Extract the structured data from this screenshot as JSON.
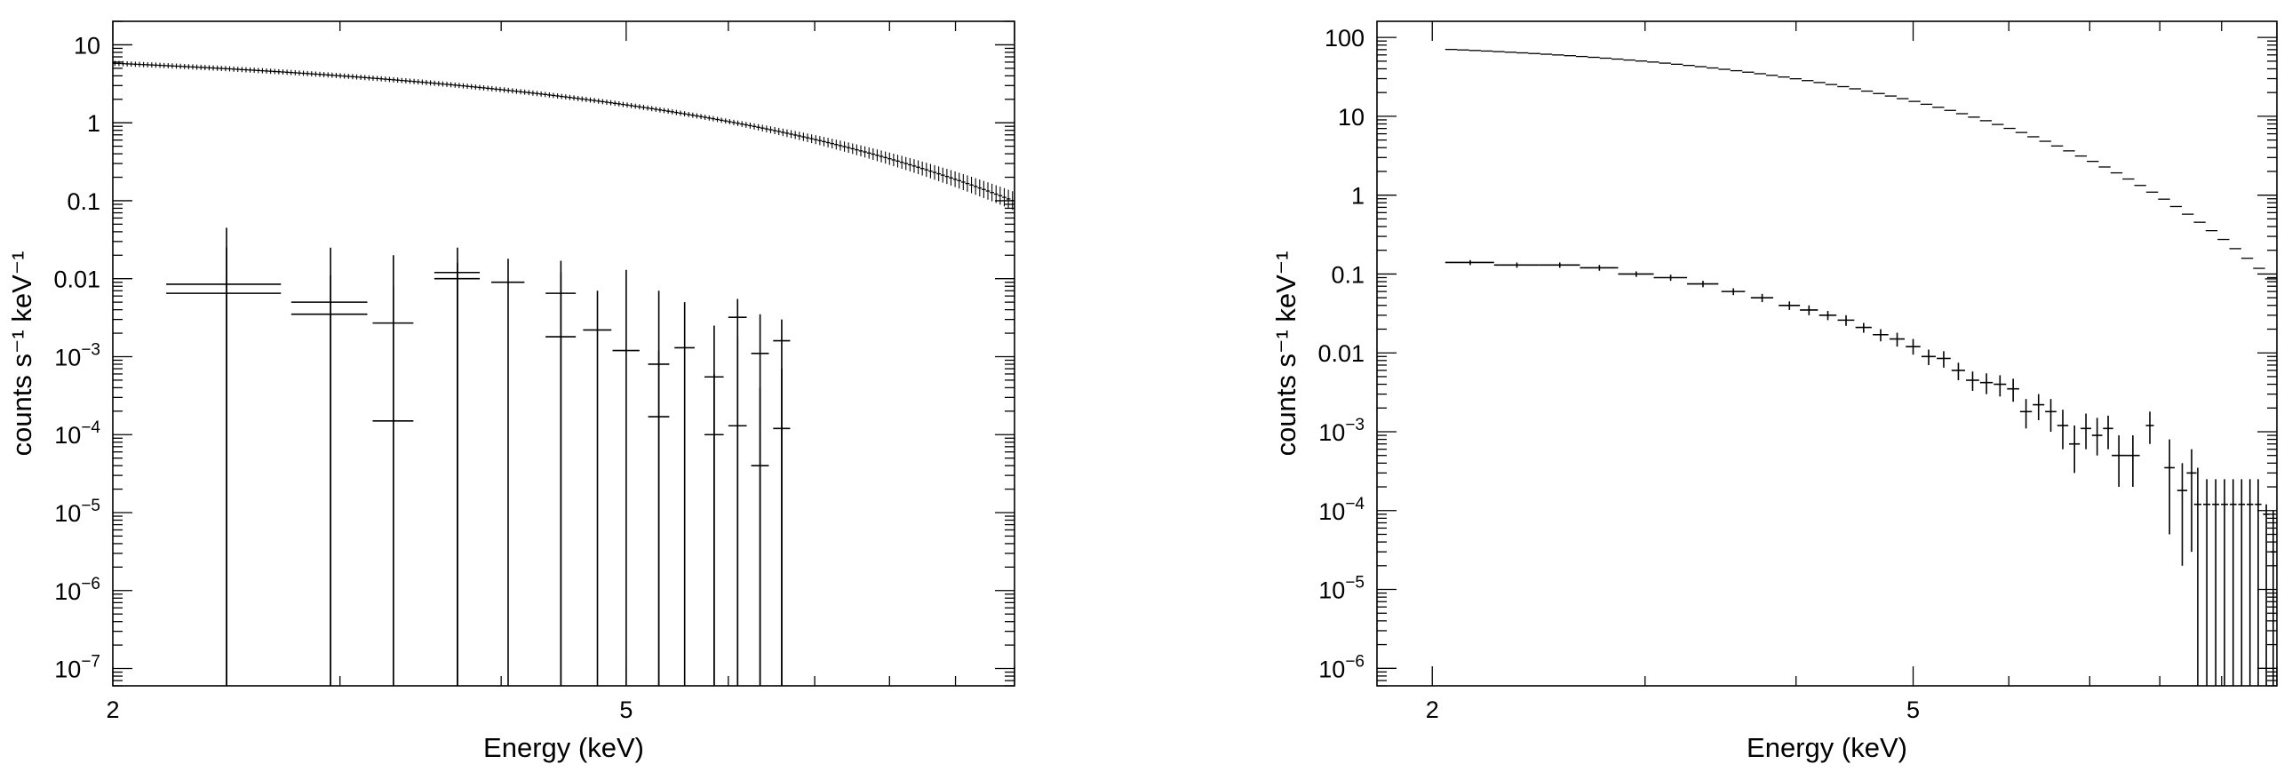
{
  "chart_data": [
    {
      "type": "scatter",
      "title": "",
      "xlabel": "Energy (keV)",
      "ylabel": "counts s⁻¹ keV⁻¹",
      "xscale": "log",
      "yscale": "log",
      "xlim": [
        2,
        10
      ],
      "ylim": [
        6e-08,
        20
      ],
      "grid": false,
      "x_ticks": [
        {
          "value": 2,
          "label": "2"
        },
        {
          "value": 5,
          "label": "5"
        }
      ],
      "y_ticks": [
        {
          "value": 10,
          "label": "10",
          "exp": ""
        },
        {
          "value": 1,
          "label": "1",
          "exp": ""
        },
        {
          "value": 0.1,
          "label": "0.1",
          "exp": ""
        },
        {
          "value": 0.01,
          "label": "0.01",
          "exp": ""
        },
        {
          "value": 0.001,
          "label": "10",
          "exp": "−3"
        },
        {
          "value": 0.0001,
          "label": "10",
          "exp": "−4"
        },
        {
          "value": 1e-05,
          "label": "10",
          "exp": "−5"
        },
        {
          "value": 1e-06,
          "label": "10",
          "exp": "−6"
        },
        {
          "value": 1e-07,
          "label": "10",
          "exp": "−7"
        }
      ],
      "series": [
        {
          "model": {
            "a": 5.8,
            "b": 0.35,
            "c": 0.02,
            "e0": 2,
            "xmin": 2.0,
            "xmax": 10.0,
            "nbins": 220,
            "err_rel": 0.08
          },
          "style": "spectrum"
        },
        {
          "style": "crosses",
          "points": [
            {
              "x": 2.45,
              "xe": 0.25,
              "y": 0.0085,
              "ylo": 1e-08,
              "yhi": 0.045
            },
            {
              "x": 2.45,
              "xe": 0.25,
              "y": 0.0065,
              "ylo": 1e-08,
              "yhi": 0.025
            },
            {
              "x": 2.95,
              "xe": 0.2,
              "y": 0.005,
              "ylo": 1e-08,
              "yhi": 0.025
            },
            {
              "x": 2.95,
              "xe": 0.2,
              "y": 0.0035,
              "ylo": 1e-08,
              "yhi": 0.011
            },
            {
              "x": 3.3,
              "xe": 0.12,
              "y": 0.0027,
              "ylo": 1e-08,
              "yhi": 0.02
            },
            {
              "x": 3.3,
              "xe": 0.12,
              "y": 0.00015,
              "ylo": 1e-08,
              "yhi": 0.008
            },
            {
              "x": 3.7,
              "xe": 0.15,
              "y": 0.012,
              "ylo": 1e-08,
              "yhi": 0.025
            },
            {
              "x": 3.7,
              "xe": 0.15,
              "y": 0.01,
              "ylo": 1e-08,
              "yhi": 0.016
            },
            {
              "x": 4.05,
              "xe": 0.12,
              "y": 0.009,
              "ylo": 1e-08,
              "yhi": 0.018
            },
            {
              "x": 4.45,
              "xe": 0.12,
              "y": 0.0065,
              "ylo": 1e-08,
              "yhi": 0.017
            },
            {
              "x": 4.45,
              "xe": 0.12,
              "y": 0.0018,
              "ylo": 1e-08,
              "yhi": 0.012
            },
            {
              "x": 4.75,
              "xe": 0.12,
              "y": 0.0022,
              "ylo": 1e-08,
              "yhi": 0.007
            },
            {
              "x": 5.0,
              "xe": 0.12,
              "y": 0.0012,
              "ylo": 1e-08,
              "yhi": 0.013
            },
            {
              "x": 5.3,
              "xe": 0.1,
              "y": 0.0008,
              "ylo": 1e-08,
              "yhi": 0.007
            },
            {
              "x": 5.3,
              "xe": 0.1,
              "y": 0.00017,
              "ylo": 1e-08,
              "yhi": 0.0012
            },
            {
              "x": 5.55,
              "xe": 0.1,
              "y": 0.0013,
              "ylo": 1e-08,
              "yhi": 0.005
            },
            {
              "x": 5.85,
              "xe": 0.1,
              "y": 0.00055,
              "ylo": 1e-08,
              "yhi": 0.0025
            },
            {
              "x": 5.85,
              "xe": 0.1,
              "y": 0.0001,
              "ylo": 1e-08,
              "yhi": 0.0006
            },
            {
              "x": 6.1,
              "xe": 0.1,
              "y": 0.0032,
              "ylo": 1e-08,
              "yhi": 0.0055
            },
            {
              "x": 6.1,
              "xe": 0.1,
              "y": 0.00013,
              "ylo": 1e-08,
              "yhi": 0.0018
            },
            {
              "x": 6.35,
              "xe": 0.1,
              "y": 0.0011,
              "ylo": 1e-08,
              "yhi": 0.0035
            },
            {
              "x": 6.35,
              "xe": 0.1,
              "y": 4e-05,
              "ylo": 1e-08,
              "yhi": 0.0004
            },
            {
              "x": 6.6,
              "xe": 0.1,
              "y": 0.0016,
              "ylo": 1e-08,
              "yhi": 0.003
            },
            {
              "x": 6.6,
              "xe": 0.1,
              "y": 0.00012,
              "ylo": 1e-08,
              "yhi": 0.0007
            }
          ]
        }
      ]
    },
    {
      "type": "scatter",
      "title": "",
      "xlabel": "Energy (keV)",
      "ylabel": "counts s⁻¹ keV⁻¹",
      "xscale": "log",
      "yscale": "log",
      "xlim": [
        1.8,
        10
      ],
      "ylim": [
        6e-07,
        160
      ],
      "grid": false,
      "x_ticks": [
        {
          "value": 2,
          "label": "2"
        },
        {
          "value": 5,
          "label": "5"
        }
      ],
      "y_ticks": [
        {
          "value": 100,
          "label": "100",
          "exp": ""
        },
        {
          "value": 10,
          "label": "10",
          "exp": ""
        },
        {
          "value": 1,
          "label": "1",
          "exp": ""
        },
        {
          "value": 0.1,
          "label": "0.1",
          "exp": ""
        },
        {
          "value": 0.01,
          "label": "0.01",
          "exp": ""
        },
        {
          "value": 0.001,
          "label": "10",
          "exp": "−3"
        },
        {
          "value": 0.0001,
          "label": "10",
          "exp": "−4"
        },
        {
          "value": 1e-05,
          "label": "10",
          "exp": "−5"
        },
        {
          "value": 1e-06,
          "label": "10",
          "exp": "−6"
        }
      ],
      "series": [
        {
          "model": {
            "a": 72,
            "b": 0.3,
            "c": 0.07,
            "e0": 2,
            "xmin": 2.05,
            "xmax": 10.0,
            "nbins": 70,
            "err_rel": 0.03
          },
          "style": "steps"
        },
        {
          "style": "crosses",
          "points": [
            {
              "x": 2.15,
              "xe": 0.1,
              "y": 0.14,
              "ylo": 0.13,
              "yhi": 0.15
            },
            {
              "x": 2.35,
              "xe": 0.1,
              "y": 0.13,
              "ylo": 0.12,
              "yhi": 0.14
            },
            {
              "x": 2.55,
              "xe": 0.1,
              "y": 0.13,
              "ylo": 0.12,
              "yhi": 0.14
            },
            {
              "x": 2.75,
              "xe": 0.1,
              "y": 0.12,
              "ylo": 0.11,
              "yhi": 0.13
            },
            {
              "x": 2.95,
              "xe": 0.1,
              "y": 0.1,
              "ylo": 0.092,
              "yhi": 0.108
            },
            {
              "x": 3.15,
              "xe": 0.1,
              "y": 0.09,
              "ylo": 0.082,
              "yhi": 0.098
            },
            {
              "x": 3.35,
              "xe": 0.1,
              "y": 0.075,
              "ylo": 0.068,
              "yhi": 0.082
            },
            {
              "x": 3.55,
              "xe": 0.08,
              "y": 0.06,
              "ylo": 0.054,
              "yhi": 0.066
            },
            {
              "x": 3.75,
              "xe": 0.08,
              "y": 0.05,
              "ylo": 0.044,
              "yhi": 0.056
            },
            {
              "x": 3.95,
              "xe": 0.08,
              "y": 0.04,
              "ylo": 0.035,
              "yhi": 0.045
            },
            {
              "x": 4.1,
              "xe": 0.07,
              "y": 0.035,
              "ylo": 0.03,
              "yhi": 0.04
            },
            {
              "x": 4.25,
              "xe": 0.07,
              "y": 0.03,
              "ylo": 0.026,
              "yhi": 0.034
            },
            {
              "x": 4.4,
              "xe": 0.07,
              "y": 0.026,
              "ylo": 0.022,
              "yhi": 0.03
            },
            {
              "x": 4.55,
              "xe": 0.07,
              "y": 0.021,
              "ylo": 0.018,
              "yhi": 0.024
            },
            {
              "x": 4.7,
              "xe": 0.07,
              "y": 0.017,
              "ylo": 0.014,
              "yhi": 0.02
            },
            {
              "x": 4.85,
              "xe": 0.07,
              "y": 0.015,
              "ylo": 0.012,
              "yhi": 0.018
            },
            {
              "x": 5.0,
              "xe": 0.07,
              "y": 0.012,
              "ylo": 0.0095,
              "yhi": 0.015
            },
            {
              "x": 5.15,
              "xe": 0.07,
              "y": 0.009,
              "ylo": 0.007,
              "yhi": 0.011
            },
            {
              "x": 5.3,
              "xe": 0.07,
              "y": 0.0085,
              "ylo": 0.0065,
              "yhi": 0.0105
            },
            {
              "x": 5.45,
              "xe": 0.07,
              "y": 0.006,
              "ylo": 0.0045,
              "yhi": 0.0075
            },
            {
              "x": 5.6,
              "xe": 0.07,
              "y": 0.0045,
              "ylo": 0.0033,
              "yhi": 0.0058
            },
            {
              "x": 5.75,
              "xe": 0.07,
              "y": 0.0042,
              "ylo": 0.003,
              "yhi": 0.0055
            },
            {
              "x": 5.9,
              "xe": 0.07,
              "y": 0.004,
              "ylo": 0.0028,
              "yhi": 0.0052
            },
            {
              "x": 6.05,
              "xe": 0.07,
              "y": 0.0035,
              "ylo": 0.0024,
              "yhi": 0.0047
            },
            {
              "x": 6.2,
              "xe": 0.07,
              "y": 0.0018,
              "ylo": 0.0011,
              "yhi": 0.0026
            },
            {
              "x": 6.35,
              "xe": 0.07,
              "y": 0.0022,
              "ylo": 0.0014,
              "yhi": 0.003
            },
            {
              "x": 6.5,
              "xe": 0.07,
              "y": 0.0018,
              "ylo": 0.001,
              "yhi": 0.0026
            },
            {
              "x": 6.65,
              "xe": 0.07,
              "y": 0.0012,
              "ylo": 0.0006,
              "yhi": 0.0019
            },
            {
              "x": 6.8,
              "xe": 0.07,
              "y": 0.0007,
              "ylo": 0.0003,
              "yhi": 0.0012
            },
            {
              "x": 6.95,
              "xe": 0.07,
              "y": 0.0011,
              "ylo": 0.0006,
              "yhi": 0.0017
            },
            {
              "x": 7.1,
              "xe": 0.07,
              "y": 0.0009,
              "ylo": 0.0005,
              "yhi": 0.0015
            },
            {
              "x": 7.25,
              "xe": 0.07,
              "y": 0.0011,
              "ylo": 0.0006,
              "yhi": 0.0016
            },
            {
              "x": 7.4,
              "xe": 0.1,
              "y": 0.0005,
              "ylo": 0.0002,
              "yhi": 0.0009
            },
            {
              "x": 7.6,
              "xe": 0.1,
              "y": 0.0005,
              "ylo": 0.0002,
              "yhi": 0.0009
            },
            {
              "x": 7.85,
              "xe": 0.06,
              "y": 0.0012,
              "ylo": 0.0007,
              "yhi": 0.0018
            },
            {
              "x": 8.15,
              "xe": 0.08,
              "y": 0.00035,
              "ylo": 5e-05,
              "yhi": 0.0008
            },
            {
              "x": 8.35,
              "xe": 0.08,
              "y": 0.00018,
              "ylo": 2e-05,
              "yhi": 0.0004
            },
            {
              "x": 8.5,
              "xe": 0.08,
              "y": 0.0003,
              "ylo": 3e-05,
              "yhi": 0.0006
            },
            {
              "x": 8.6,
              "xe": 0.06,
              "y": 0.00012,
              "ylo": 1e-07,
              "yhi": 0.00035
            },
            {
              "x": 8.75,
              "xe": 0.06,
              "y": 0.00012,
              "ylo": 1e-07,
              "yhi": 0.00025
            },
            {
              "x": 8.9,
              "xe": 0.06,
              "y": 0.00012,
              "ylo": 1e-07,
              "yhi": 0.00025
            },
            {
              "x": 9.05,
              "xe": 0.06,
              "y": 0.00012,
              "ylo": 1e-07,
              "yhi": 0.00025
            },
            {
              "x": 9.2,
              "xe": 0.06,
              "y": 0.00012,
              "ylo": 1e-07,
              "yhi": 0.00025
            },
            {
              "x": 9.35,
              "xe": 0.06,
              "y": 0.00012,
              "ylo": 1e-07,
              "yhi": 0.00025
            },
            {
              "x": 9.5,
              "xe": 0.06,
              "y": 0.00012,
              "ylo": 1e-07,
              "yhi": 0.00025
            },
            {
              "x": 9.65,
              "xe": 0.06,
              "y": 0.00012,
              "ylo": 1e-07,
              "yhi": 0.00025
            },
            {
              "x": 9.8,
              "xe": 0.06,
              "y": 9e-05,
              "ylo": 1e-07,
              "yhi": 0.00012
            },
            {
              "x": 9.93,
              "xe": 0.05,
              "y": 3e-05,
              "ylo": 1e-07,
              "yhi": 0.0001
            }
          ]
        }
      ]
    }
  ]
}
